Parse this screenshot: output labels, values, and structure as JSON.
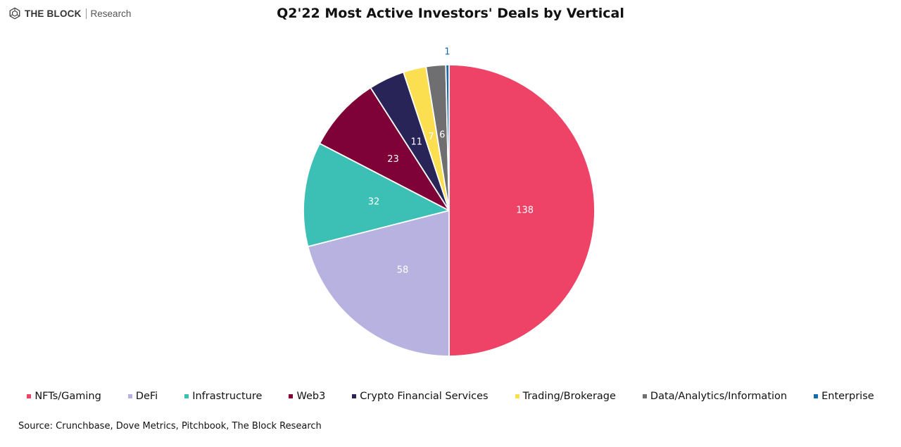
{
  "brand": {
    "name": "THE BLOCK",
    "sub": "Research",
    "logo_icon": "cube-logo-icon"
  },
  "source_note": "Source: Crunchbase, Dove Metrics, Pitchbook, The Block Research",
  "chart_data": {
    "type": "pie",
    "title": "Q2'22 Most Active Investors' Deals by Vertical",
    "categories": [
      "NFTs/Gaming",
      "DeFi",
      "Infrastructure",
      "Web3",
      "Crypto Financial Services",
      "Trading/Brokerage",
      "Data/Analytics/Information",
      "Enterprise"
    ],
    "values": [
      138,
      58,
      32,
      23,
      11,
      7,
      6,
      1
    ],
    "data_labels": [
      "138",
      "58",
      "32",
      "23",
      "11",
      "7",
      "6",
      "1"
    ],
    "colors": [
      "#EE4266",
      "#B8B2E0",
      "#3CBFB4",
      "#7E0137",
      "#282457",
      "#FCDE51",
      "#6F6F71",
      "#1769A8"
    ],
    "start_angle": "12 o'clock",
    "direction": "clockwise",
    "legend_position": "bottom"
  }
}
